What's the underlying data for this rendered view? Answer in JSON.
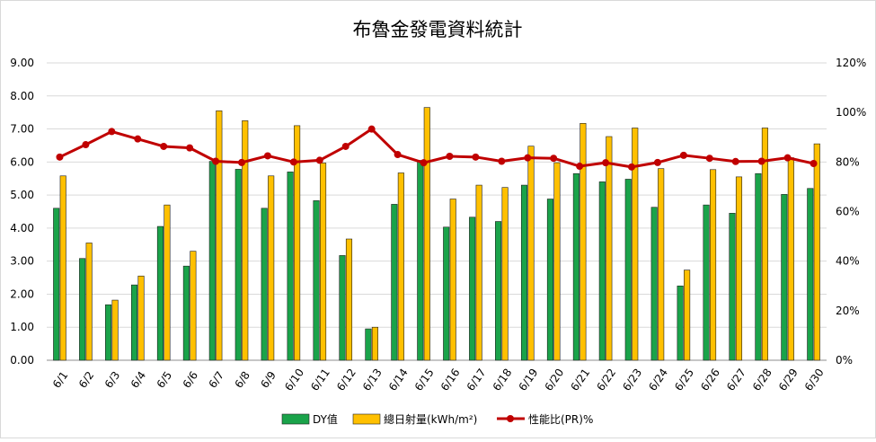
{
  "chart_data": {
    "type": "bar",
    "title": "布魯金發電資料統計",
    "categories": [
      "6/1",
      "6/2",
      "6/3",
      "6/4",
      "6/5",
      "6/6",
      "6/7",
      "6/8",
      "6/9",
      "6/10",
      "6/11",
      "6/12",
      "6/13",
      "6/14",
      "6/15",
      "6/16",
      "6/17",
      "6/18",
      "6/19",
      "6/20",
      "6/21",
      "6/22",
      "6/23",
      "6/24",
      "6/25",
      "6/26",
      "6/27",
      "6/28",
      "6/29",
      "6/30"
    ],
    "y_left": {
      "ylim": [
        0,
        9
      ],
      "ticks": [
        "0.00",
        "1.00",
        "2.00",
        "3.00",
        "4.00",
        "5.00",
        "6.00",
        "7.00",
        "8.00",
        "9.00"
      ]
    },
    "y_right": {
      "ylim": [
        0,
        120
      ],
      "ticks": [
        "0%",
        "20%",
        "40%",
        "60%",
        "80%",
        "100%",
        "120%"
      ]
    },
    "grid": true,
    "legend_position": "bottom",
    "series": [
      {
        "name": "DY值",
        "type": "bar",
        "axis": "left",
        "color": "#1aa34a",
        "values": [
          4.6,
          3.08,
          1.68,
          2.28,
          4.05,
          2.85,
          6.02,
          5.78,
          4.6,
          5.7,
          4.83,
          3.17,
          0.95,
          4.72,
          6.05,
          4.03,
          4.33,
          4.2,
          5.3,
          4.88,
          5.65,
          5.4,
          5.48,
          4.63,
          2.25,
          4.7,
          4.45,
          5.65,
          5.02,
          5.2
        ]
      },
      {
        "name": "總日射量(kWh/m²)",
        "type": "bar",
        "axis": "left",
        "color": "#ffc000",
        "values": [
          5.58,
          3.55,
          1.82,
          2.55,
          4.7,
          3.3,
          7.55,
          7.25,
          5.58,
          7.1,
          5.97,
          3.67,
          1.0,
          5.67,
          7.65,
          4.88,
          5.3,
          5.23,
          6.48,
          5.98,
          7.17,
          6.77,
          7.03,
          5.8,
          2.73,
          5.77,
          5.55,
          7.03,
          6.13,
          6.55
        ]
      },
      {
        "name": "性能比(PR)%",
        "type": "line",
        "axis": "right",
        "color": "#c00000",
        "values": [
          82.0,
          87.0,
          92.3,
          89.3,
          86.3,
          85.7,
          80.3,
          79.8,
          82.5,
          80.0,
          80.7,
          86.3,
          93.3,
          83.0,
          79.7,
          82.3,
          82.0,
          80.3,
          81.7,
          81.5,
          78.3,
          79.7,
          78.0,
          79.8,
          82.7,
          81.5,
          80.2,
          80.3,
          81.7,
          79.4
        ]
      }
    ]
  },
  "legend": {
    "dy_label": "DY值",
    "irr_label": "總日射量(kWh/m²)",
    "pr_label": "性能比(PR)%"
  }
}
